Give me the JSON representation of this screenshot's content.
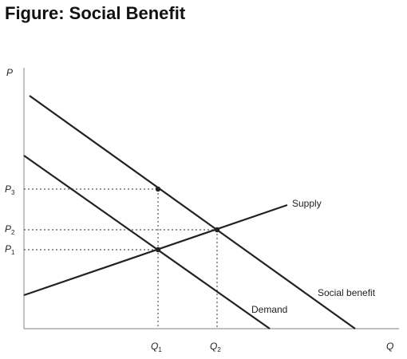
{
  "title": "Figure: Social Benefit",
  "axes": {
    "y_label": "P",
    "x_label": "Q"
  },
  "ticks": {
    "p3": {
      "main": "P",
      "sub": "3"
    },
    "p2": {
      "main": "P",
      "sub": "2"
    },
    "p1": {
      "main": "P",
      "sub": "1"
    },
    "q1": {
      "main": "Q",
      "sub": "1"
    },
    "q2": {
      "main": "Q",
      "sub": "2"
    }
  },
  "curves": {
    "supply": "Supply",
    "demand": "Demand",
    "social_benefit": "Social benefit"
  },
  "colors": {
    "line": "#222222",
    "axis": "#999999",
    "guide": "#555555"
  }
}
